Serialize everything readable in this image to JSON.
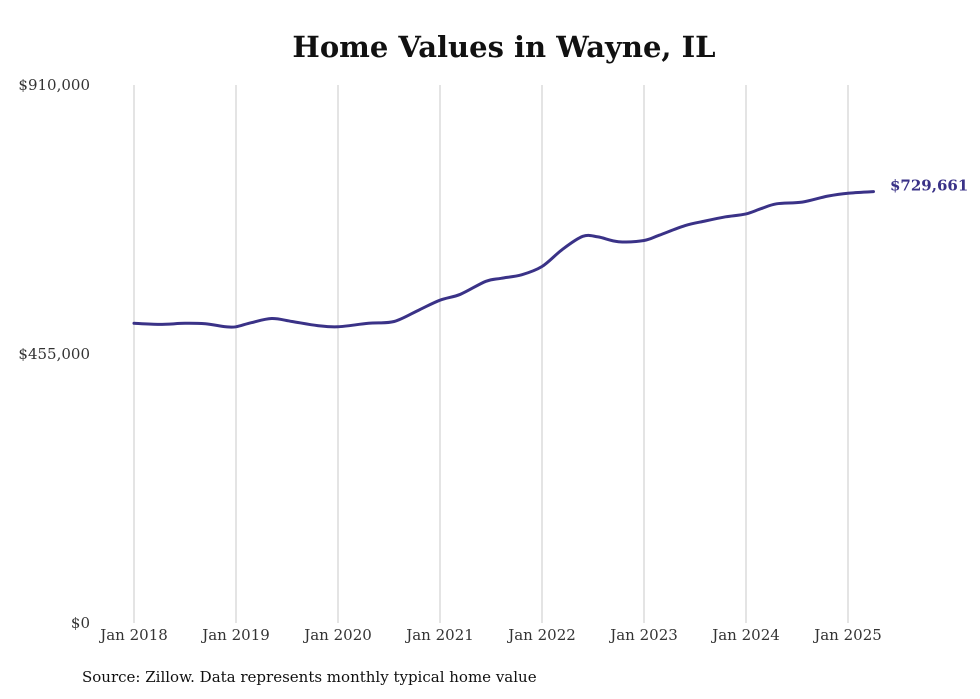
{
  "chart_data": {
    "type": "line",
    "title": "Home Values in Wayne, IL",
    "source": "Source: Zillow. Data represents monthly typical home value",
    "x_ticks": [
      "Jan 2018",
      "Jan 2019",
      "Jan 2020",
      "Jan 2021",
      "Jan 2022",
      "Jan 2023",
      "Jan 2024",
      "Jan 2025"
    ],
    "y_ticks": [
      "$0",
      "$455,000",
      "$910,000"
    ],
    "ylim": [
      0,
      910000
    ],
    "xlim": [
      2018.0,
      2025.25
    ],
    "grid": "vertical",
    "line_color": "#3a3287",
    "end_label": "$729,661",
    "series": [
      {
        "points": [
          [
            2018.0,
            507000
          ],
          [
            2018.25,
            505000
          ],
          [
            2018.5,
            507000
          ],
          [
            2018.7,
            506000
          ],
          [
            2018.9,
            501000
          ],
          [
            2019.0,
            501000
          ],
          [
            2019.15,
            508000
          ],
          [
            2019.35,
            515000
          ],
          [
            2019.55,
            510000
          ],
          [
            2019.8,
            503000
          ],
          [
            2020.0,
            501000
          ],
          [
            2020.3,
            507000
          ],
          [
            2020.55,
            510000
          ],
          [
            2020.8,
            530000
          ],
          [
            2021.0,
            546000
          ],
          [
            2021.2,
            556000
          ],
          [
            2021.45,
            578000
          ],
          [
            2021.6,
            583000
          ],
          [
            2021.8,
            589000
          ],
          [
            2022.0,
            603000
          ],
          [
            2022.2,
            632000
          ],
          [
            2022.4,
            654000
          ],
          [
            2022.55,
            653000
          ],
          [
            2022.75,
            645000
          ],
          [
            2023.0,
            647000
          ],
          [
            2023.15,
            656000
          ],
          [
            2023.4,
            672000
          ],
          [
            2023.6,
            680000
          ],
          [
            2023.8,
            687000
          ],
          [
            2024.0,
            692000
          ],
          [
            2024.15,
            701000
          ],
          [
            2024.3,
            709000
          ],
          [
            2024.55,
            712000
          ],
          [
            2024.8,
            722000
          ],
          [
            2025.0,
            727000
          ],
          [
            2025.25,
            729661
          ]
        ]
      }
    ]
  }
}
